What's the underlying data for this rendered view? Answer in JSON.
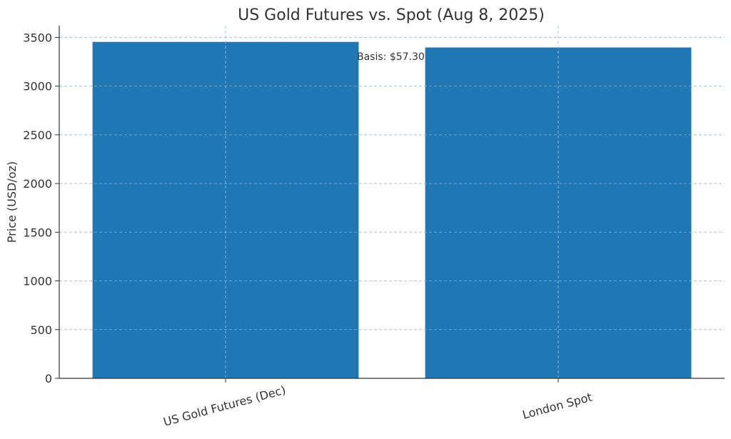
{
  "chart_data": {
    "type": "bar",
    "title": "US Gold Futures vs. Spot (Aug 8, 2025)",
    "xlabel": "",
    "ylabel": "Price (USD/oz)",
    "categories": [
      "US Gold Futures (Dec)",
      "London Spot"
    ],
    "values": [
      3453.7,
      3396.4
    ],
    "ylim": [
      0,
      3620
    ],
    "yticks": [
      0,
      500,
      1000,
      1500,
      2000,
      2500,
      3000,
      3500
    ],
    "grid": true,
    "annotations": [
      {
        "text": "Basis: $57.30"
      }
    ],
    "colors": {
      "bar": "#1f77b4",
      "grid": "#cccccc",
      "axis": "#333333"
    }
  }
}
